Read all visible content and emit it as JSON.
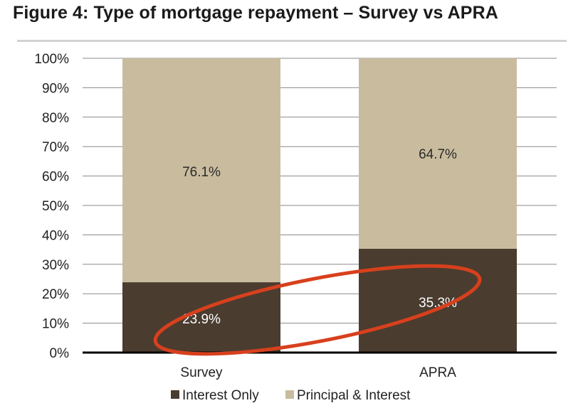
{
  "figure": {
    "title": "Figure 4: Type of mortgage repayment – Survey vs APRA"
  },
  "colors": {
    "interest_only": "#4a3c2f",
    "principal_interest": "#c9bc9e",
    "highlight": "#d8401d",
    "label_dark": "#2a2a2a",
    "label_light": "#ffffff"
  },
  "chart_data": {
    "type": "bar",
    "stacked": true,
    "categories": [
      "Survey",
      "APRA"
    ],
    "series": [
      {
        "name": "Interest Only",
        "values": [
          23.9,
          35.3
        ],
        "labels": [
          "23.9%",
          "35.3%"
        ]
      },
      {
        "name": "Principal & Interest",
        "values": [
          76.1,
          64.7
        ],
        "labels": [
          "76.1%",
          "64.7%"
        ]
      }
    ],
    "ylim": [
      0,
      100
    ],
    "yticks": [
      0,
      10,
      20,
      30,
      40,
      50,
      60,
      70,
      80,
      90,
      100
    ],
    "ytick_labels": [
      "0%",
      "10%",
      "20%",
      "30%",
      "40%",
      "50%",
      "60%",
      "70%",
      "80%",
      "90%",
      "100%"
    ],
    "grid": true,
    "legend_position": "bottom",
    "annotation": "highlight ellipse around Interest Only values"
  }
}
